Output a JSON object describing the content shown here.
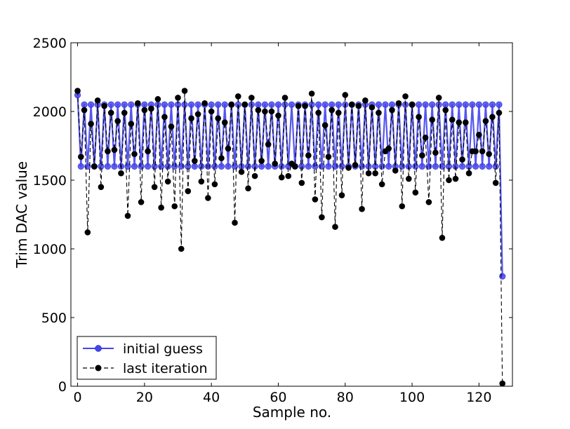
{
  "chart_data": {
    "type": "line",
    "title": "",
    "xlabel": "Sample no.",
    "ylabel": "Trim DAC value",
    "xlim": [
      -2,
      130
    ],
    "ylim": [
      0,
      2500
    ],
    "xticks": [
      0,
      20,
      40,
      60,
      80,
      100,
      120
    ],
    "yticks": [
      0,
      500,
      1000,
      1500,
      2000,
      2500
    ],
    "xtick_labels": [
      "0",
      "20",
      "40",
      "60",
      "80",
      "100",
      "120"
    ],
    "ytick_labels": [
      "0",
      "500",
      "1000",
      "1500",
      "2000",
      "2500"
    ],
    "grid": false,
    "legend": {
      "position": "lower-left",
      "entries": [
        "initial guess",
        "last iteration"
      ]
    },
    "x": [
      0,
      1,
      2,
      3,
      4,
      5,
      6,
      7,
      8,
      9,
      10,
      11,
      12,
      13,
      14,
      15,
      16,
      17,
      18,
      19,
      20,
      21,
      22,
      23,
      24,
      25,
      26,
      27,
      28,
      29,
      30,
      31,
      32,
      33,
      34,
      35,
      36,
      37,
      38,
      39,
      40,
      41,
      42,
      43,
      44,
      45,
      46,
      47,
      48,
      49,
      50,
      51,
      52,
      53,
      54,
      55,
      56,
      57,
      58,
      59,
      60,
      61,
      62,
      63,
      64,
      65,
      66,
      67,
      68,
      69,
      70,
      71,
      72,
      73,
      74,
      75,
      76,
      77,
      78,
      79,
      80,
      81,
      82,
      83,
      84,
      85,
      86,
      87,
      88,
      89,
      90,
      91,
      92,
      93,
      94,
      95,
      96,
      97,
      98,
      99,
      100,
      101,
      102,
      103,
      104,
      105,
      106,
      107,
      108,
      109,
      110,
      111,
      112,
      113,
      114,
      115,
      116,
      117,
      118,
      119,
      120,
      121,
      122,
      123,
      124,
      125,
      126,
      127
    ],
    "series": [
      {
        "name": "initial guess",
        "color": "#4444ee",
        "linestyle": "solid",
        "marker": "circle",
        "values": [
          2120,
          1600,
          2050,
          1600,
          2050,
          1600,
          2050,
          1600,
          2050,
          1600,
          2050,
          1600,
          2050,
          1600,
          2050,
          1600,
          2050,
          1600,
          2050,
          1600,
          2050,
          1600,
          2050,
          1600,
          2050,
          1600,
          2050,
          1600,
          2050,
          1600,
          2050,
          1600,
          2050,
          1600,
          2050,
          1600,
          2050,
          1600,
          2050,
          1600,
          2050,
          1600,
          2050,
          1600,
          2050,
          1600,
          2050,
          1600,
          2050,
          1600,
          2050,
          1600,
          2050,
          1600,
          2050,
          1600,
          2050,
          1600,
          2050,
          1600,
          2050,
          1600,
          2050,
          1600,
          2050,
          1600,
          2050,
          1600,
          2050,
          1600,
          2050,
          1600,
          2050,
          1600,
          2050,
          1600,
          2050,
          1600,
          2050,
          1600,
          2050,
          1600,
          2050,
          1600,
          2050,
          1600,
          2050,
          1600,
          2050,
          1600,
          2050,
          1600,
          2050,
          1600,
          2050,
          1600,
          2050,
          1600,
          2050,
          1600,
          2050,
          1600,
          2050,
          1600,
          2050,
          1600,
          2050,
          1600,
          2050,
          1600,
          2050,
          1600,
          2050,
          1600,
          2050,
          1600,
          2050,
          1600,
          2050,
          1600,
          2050,
          1600,
          2050,
          1600,
          2050,
          1600,
          2050,
          800
        ]
      },
      {
        "name": "last iteration",
        "color": "#000000",
        "linestyle": "dashed",
        "marker": "circle",
        "values": [
          2150,
          1670,
          2010,
          1120,
          1910,
          1600,
          2080,
          1450,
          2040,
          1710,
          1990,
          1720,
          1930,
          1550,
          1990,
          1240,
          1910,
          1690,
          2060,
          1340,
          2010,
          1710,
          2020,
          1450,
          2090,
          1300,
          1960,
          1490,
          1890,
          1310,
          2100,
          1000,
          2150,
          1420,
          1950,
          1640,
          1980,
          1490,
          2060,
          1370,
          2000,
          1470,
          1950,
          1660,
          1920,
          1730,
          2050,
          1190,
          2110,
          1560,
          2050,
          1440,
          2100,
          1530,
          2010,
          1640,
          2000,
          1760,
          2000,
          1620,
          1970,
          1520,
          2100,
          1530,
          1620,
          1600,
          2040,
          1480,
          2040,
          1680,
          2130,
          1360,
          1990,
          1230,
          1900,
          1670,
          2010,
          1160,
          1990,
          1390,
          2120,
          1590,
          2050,
          1610,
          2040,
          1290,
          2080,
          1550,
          2030,
          1550,
          1990,
          1470,
          1710,
          1730,
          2010,
          1570,
          2060,
          1310,
          2110,
          1510,
          2050,
          1410,
          1960,
          1680,
          1810,
          1340,
          1940,
          1700,
          2100,
          1080,
          2010,
          1500,
          1940,
          1510,
          1920,
          1650,
          1920,
          1550,
          1710,
          1710,
          1830,
          1710,
          1930,
          1690,
          1960,
          1480,
          1990,
          20
        ]
      }
    ]
  }
}
